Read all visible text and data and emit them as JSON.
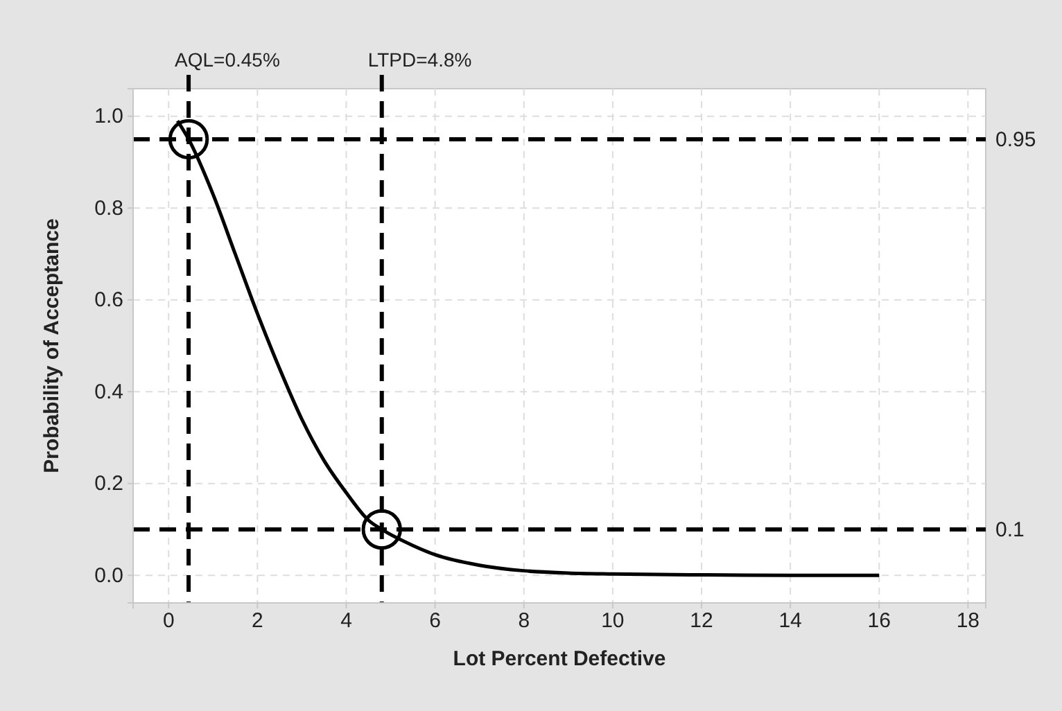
{
  "chart_data": {
    "type": "line",
    "xlabel": "Lot Percent Defective",
    "ylabel": "Probability of Acceptance",
    "xlim": [
      -0.8,
      18.4
    ],
    "ylim": [
      -0.06,
      1.06
    ],
    "xticks": [
      0,
      2,
      4,
      6,
      8,
      10,
      12,
      14,
      16,
      18
    ],
    "yticks": [
      {
        "value": 0,
        "label": "0.0"
      },
      0.2,
      0.4,
      0.6,
      0.8,
      {
        "value": 1,
        "label": "1.0"
      }
    ],
    "grid": true,
    "series": [
      {
        "color": "#000000",
        "marker": "none",
        "x": [
          0.2,
          0.45,
          1,
          1.5,
          2,
          2.5,
          3,
          3.5,
          4,
          4.5,
          4.8,
          5.5,
          6,
          7,
          8,
          9,
          10,
          12,
          14,
          16
        ],
        "values": [
          0.99,
          0.95,
          0.83,
          0.7,
          0.57,
          0.45,
          0.34,
          0.25,
          0.18,
          0.12,
          0.1,
          0.065,
          0.045,
          0.022,
          0.01,
          0.005,
          0.003,
          0.001,
          0.0,
          0
        ]
      },
      {
        "type": "scatter",
        "color": "#000000",
        "marker": "circle",
        "x": [
          0.45,
          4.8
        ],
        "values": [
          0.95,
          0.1
        ]
      }
    ],
    "ref_lines": [
      {
        "axis": "x",
        "value": 0.45,
        "label": "AQL=0.45%",
        "color": "#000000",
        "line_style": "dashed"
      },
      {
        "axis": "x",
        "value": 4.8,
        "label": "LTPD=4.8%",
        "color": "#000000",
        "line_style": "dashed"
      },
      {
        "axis": "y",
        "value": 0.95,
        "label": "0.95",
        "color": "#000000",
        "line_style": "dashed"
      },
      {
        "axis": "y",
        "value": 0.1,
        "label": "0.1",
        "color": "#000000",
        "line_style": "dashed"
      }
    ]
  }
}
